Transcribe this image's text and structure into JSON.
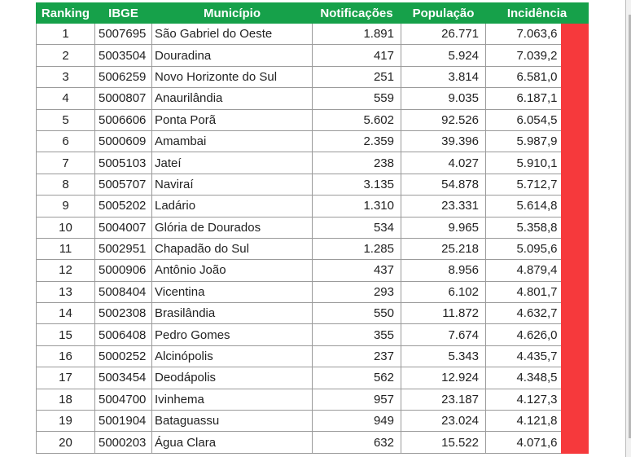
{
  "header": {
    "ranking": "Ranking",
    "ibge": "IBGE",
    "municipio": "Município",
    "notificacoes": "Notificações",
    "populacao": "População",
    "incidencia": "Incidência"
  },
  "colors": {
    "header_bg": "#16a14a",
    "flag_red": "#f6393c"
  },
  "rows": [
    {
      "rank": "1",
      "ibge": "5007695",
      "municipio": "São Gabriel do Oeste",
      "notificacoes": "1.891",
      "populacao": "26.771",
      "incidencia": "7.063,6"
    },
    {
      "rank": "2",
      "ibge": "5003504",
      "municipio": "Douradina",
      "notificacoes": "417",
      "populacao": "5.924",
      "incidencia": "7.039,2"
    },
    {
      "rank": "3",
      "ibge": "5006259",
      "municipio": "Novo Horizonte do Sul",
      "notificacoes": "251",
      "populacao": "3.814",
      "incidencia": "6.581,0"
    },
    {
      "rank": "4",
      "ibge": "5000807",
      "municipio": "Anaurilândia",
      "notificacoes": "559",
      "populacao": "9.035",
      "incidencia": "6.187,1"
    },
    {
      "rank": "5",
      "ibge": "5006606",
      "municipio": "Ponta Porã",
      "notificacoes": "5.602",
      "populacao": "92.526",
      "incidencia": "6.054,5"
    },
    {
      "rank": "6",
      "ibge": "5000609",
      "municipio": "Amambai",
      "notificacoes": "2.359",
      "populacao": "39.396",
      "incidencia": "5.987,9"
    },
    {
      "rank": "7",
      "ibge": "5005103",
      "municipio": "Jateí",
      "notificacoes": "238",
      "populacao": "4.027",
      "incidencia": "5.910,1"
    },
    {
      "rank": "8",
      "ibge": "5005707",
      "municipio": "Naviraí",
      "notificacoes": "3.135",
      "populacao": "54.878",
      "incidencia": "5.712,7"
    },
    {
      "rank": "9",
      "ibge": "5005202",
      "municipio": "Ladário",
      "notificacoes": "1.310",
      "populacao": "23.331",
      "incidencia": "5.614,8"
    },
    {
      "rank": "10",
      "ibge": "5004007",
      "municipio": "Glória de Dourados",
      "notificacoes": "534",
      "populacao": "9.965",
      "incidencia": "5.358,8"
    },
    {
      "rank": "11",
      "ibge": "5002951",
      "municipio": "Chapadão do Sul",
      "notificacoes": "1.285",
      "populacao": "25.218",
      "incidencia": "5.095,6"
    },
    {
      "rank": "12",
      "ibge": "5000906",
      "municipio": "Antônio João",
      "notificacoes": "437",
      "populacao": "8.956",
      "incidencia": "4.879,4"
    },
    {
      "rank": "13",
      "ibge": "5008404",
      "municipio": "Vicentina",
      "notificacoes": "293",
      "populacao": "6.102",
      "incidencia": "4.801,7"
    },
    {
      "rank": "14",
      "ibge": "5002308",
      "municipio": "Brasilândia",
      "notificacoes": "550",
      "populacao": "11.872",
      "incidencia": "4.632,7"
    },
    {
      "rank": "15",
      "ibge": "5006408",
      "municipio": "Pedro Gomes",
      "notificacoes": "355",
      "populacao": "7.674",
      "incidencia": "4.626,0"
    },
    {
      "rank": "16",
      "ibge": "5000252",
      "municipio": "Alcinópolis",
      "notificacoes": "237",
      "populacao": "5.343",
      "incidencia": "4.435,7"
    },
    {
      "rank": "17",
      "ibge": "5003454",
      "municipio": "Deodápolis",
      "notificacoes": "562",
      "populacao": "12.924",
      "incidencia": "4.348,5"
    },
    {
      "rank": "18",
      "ibge": "5004700",
      "municipio": "Ivinhema",
      "notificacoes": "957",
      "populacao": "23.187",
      "incidencia": "4.127,3"
    },
    {
      "rank": "19",
      "ibge": "5001904",
      "municipio": "Bataguassu",
      "notificacoes": "949",
      "populacao": "23.024",
      "incidencia": "4.121,8"
    },
    {
      "rank": "20",
      "ibge": "5000203",
      "municipio": "Água Clara",
      "notificacoes": "632",
      "populacao": "15.522",
      "incidencia": "4.071,6"
    }
  ]
}
